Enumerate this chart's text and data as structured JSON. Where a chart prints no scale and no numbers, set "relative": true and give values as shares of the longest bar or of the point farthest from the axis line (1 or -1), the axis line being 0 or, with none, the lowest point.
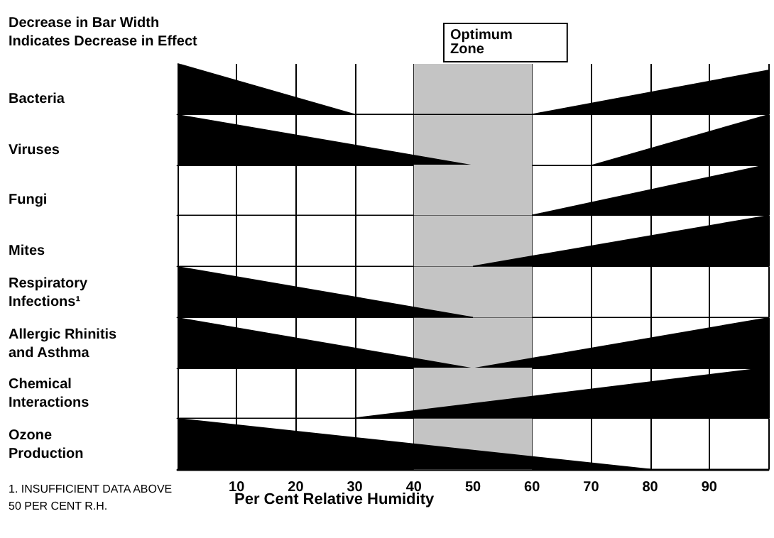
{
  "chart_data": [
    {
      "type": "area",
      "ylabel": "Bacteria",
      "x": [
        0,
        30,
        60,
        100
      ],
      "values": [
        1,
        0,
        0,
        0.87
      ],
      "relative": true,
      "color": "#000000",
      "marker": "none",
      "xlim": [
        0,
        100
      ],
      "xticks": [
        10,
        20,
        30,
        40,
        50,
        60,
        70,
        80,
        90
      ],
      "grid": "x",
      "tick_labels": false,
      "bands": [
        {
          "axis": "x",
          "from": 40,
          "to": 60,
          "label": "Optimum\nZone",
          "color": "#c4c4c4"
        }
      ],
      "annotations": [
        "Decrease in Bar Width\nIndicates Decrease in Effect"
      ]
    },
    {
      "type": "area",
      "ylabel": "Viruses",
      "x": [
        0,
        50,
        70,
        100
      ],
      "values": [
        1,
        0,
        0,
        1
      ],
      "relative": true,
      "color": "#000000",
      "marker": "none",
      "xlim": [
        0,
        100
      ],
      "xticks": [
        10,
        20,
        30,
        40,
        50,
        60,
        70,
        80,
        90
      ],
      "grid": "x",
      "tick_labels": false,
      "bands": [
        {
          "axis": "x",
          "from": 40,
          "to": 60,
          "color": "#c4c4c4"
        }
      ]
    },
    {
      "type": "area",
      "ylabel": "Fungi",
      "x": [
        60,
        100
      ],
      "values": [
        0,
        1
      ],
      "relative": true,
      "color": "#000000",
      "marker": "none",
      "xlim": [
        0,
        100
      ],
      "xticks": [
        10,
        20,
        30,
        40,
        50,
        60,
        70,
        80,
        90
      ],
      "grid": "x",
      "tick_labels": false,
      "bands": [
        {
          "axis": "x",
          "from": 40,
          "to": 60,
          "color": "#c4c4c4"
        }
      ]
    },
    {
      "type": "area",
      "ylabel": "Mites",
      "x": [
        50,
        100
      ],
      "values": [
        0,
        1
      ],
      "relative": true,
      "color": "#000000",
      "marker": "none",
      "xlim": [
        0,
        100
      ],
      "xticks": [
        10,
        20,
        30,
        40,
        50,
        60,
        70,
        80,
        90
      ],
      "grid": "x",
      "tick_labels": false,
      "bands": [
        {
          "axis": "x",
          "from": 40,
          "to": 60,
          "color": "#c4c4c4"
        }
      ]
    },
    {
      "type": "area",
      "ylabel": "Respiratory\nInfections¹",
      "x": [
        0,
        50
      ],
      "values": [
        1,
        0
      ],
      "relative": true,
      "color": "#000000",
      "marker": "none",
      "xlim": [
        0,
        100
      ],
      "xticks": [
        10,
        20,
        30,
        40,
        50,
        60,
        70,
        80,
        90
      ],
      "grid": "x",
      "tick_labels": false,
      "bands": [
        {
          "axis": "x",
          "from": 40,
          "to": 60,
          "color": "#c4c4c4"
        }
      ]
    },
    {
      "type": "area",
      "ylabel": "Allergic Rhinitis\nand Asthma",
      "x": [
        0,
        50,
        100
      ],
      "values": [
        1,
        0,
        1
      ],
      "relative": true,
      "color": "#000000",
      "marker": "none",
      "xlim": [
        0,
        100
      ],
      "xticks": [
        10,
        20,
        30,
        40,
        50,
        60,
        70,
        80,
        90
      ],
      "grid": "x",
      "tick_labels": false,
      "bands": [
        {
          "axis": "x",
          "from": 40,
          "to": 60,
          "color": "#c4c4c4"
        }
      ]
    },
    {
      "type": "area",
      "ylabel": "Chemical\nInteractions",
      "x": [
        30,
        100
      ],
      "values": [
        0,
        1
      ],
      "relative": true,
      "color": "#000000",
      "marker": "none",
      "xlim": [
        0,
        100
      ],
      "xticks": [
        10,
        20,
        30,
        40,
        50,
        60,
        70,
        80,
        90
      ],
      "grid": "x",
      "tick_labels": false,
      "bands": [
        {
          "axis": "x",
          "from": 40,
          "to": 60,
          "color": "#c4c4c4"
        }
      ]
    },
    {
      "type": "area",
      "ylabel": "Ozone\nProduction",
      "x": [
        0,
        80
      ],
      "values": [
        1,
        0
      ],
      "relative": true,
      "color": "#000000",
      "marker": "none",
      "xlim": [
        0,
        100
      ],
      "xticks": [
        10,
        20,
        30,
        40,
        50,
        60,
        70,
        80,
        90
      ],
      "grid": "x",
      "tick_labels": "x",
      "xlabel": "Per Cent Relative Humidity",
      "bands": [
        {
          "axis": "x",
          "from": 40,
          "to": 60,
          "color": "#c4c4c4"
        }
      ],
      "annotations": [
        "1. INSUFFICIENT DATA ABOVE\n50 PER CENT R.H."
      ]
    }
  ]
}
